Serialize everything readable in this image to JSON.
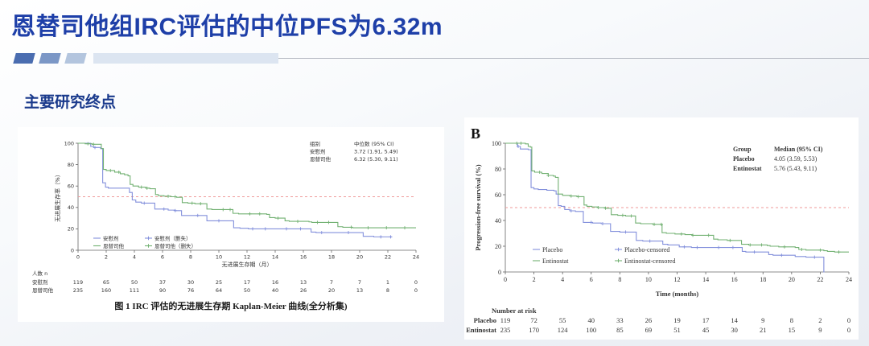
{
  "slide": {
    "title": "恩替司他组IRC评估的中位PFS为6.32m",
    "section_heading": "主要研究终点"
  },
  "colors": {
    "title_blue": "#1e3fa8",
    "heading_blue": "#1a3a8c",
    "placebo": "#8390dc",
    "entinostat": "#72b172",
    "median_line": "#ef9a9a",
    "axis": "#666666",
    "text": "#333333",
    "decor_squares": [
      "#4a6db0",
      "#7b97c6",
      "#b3c5de"
    ],
    "decor_bar": "#dce5f1"
  },
  "chart_data": [
    {
      "type": "line",
      "subtype": "kaplan-meier-step",
      "panel_label": "",
      "caption": "图 1 IRC 评估的无进展生存期 Kaplan-Meier 曲线(全分析集)",
      "xlabel": "无进展生存期（月）",
      "ylabel": "无进展生存率（%）",
      "xlim": [
        0,
        24
      ],
      "ylim": [
        0,
        100
      ],
      "xticks": [
        0,
        2,
        4,
        6,
        8,
        10,
        12,
        14,
        16,
        18,
        20,
        22,
        24
      ],
      "yticks": [
        0,
        20,
        40,
        60,
        80,
        100
      ],
      "median_ref_y": 50,
      "grid": false,
      "stats": {
        "headers": [
          "组别",
          "中位数 (95% CI)"
        ],
        "rows": [
          [
            "安慰剂",
            "3.72 (1.91, 5.49)"
          ],
          [
            "恩替司他",
            "6.32 (5.30, 9.11)"
          ]
        ]
      },
      "legend": [
        {
          "label": "安慰剂",
          "color_key": "placebo",
          "censored": false
        },
        {
          "label": "恩替司他",
          "color_key": "entinostat",
          "censored": false
        },
        {
          "label": "安慰剂（删失）",
          "color_key": "placebo",
          "censored": true
        },
        {
          "label": "恩替司他（删失）",
          "color_key": "entinostat",
          "censored": true
        }
      ],
      "series": [
        {
          "name": "安慰剂",
          "color_key": "placebo",
          "end_x": 22.3,
          "steps": [
            [
              0,
              100
            ],
            [
              0.9,
              97
            ],
            [
              1.1,
              96
            ],
            [
              1.6,
              95
            ],
            [
              1.75,
              63
            ],
            [
              1.95,
              59
            ],
            [
              2.15,
              58
            ],
            [
              3.65,
              54
            ],
            [
              3.85,
              47
            ],
            [
              4.1,
              45
            ],
            [
              4.5,
              44
            ],
            [
              5.45,
              38.5
            ],
            [
              6.4,
              37.5
            ],
            [
              6.9,
              37
            ],
            [
              7.35,
              32.5
            ],
            [
              9.15,
              27.5
            ],
            [
              11.05,
              21
            ],
            [
              11.5,
              20.5
            ],
            [
              12.1,
              20
            ],
            [
              16.55,
              17
            ],
            [
              16.9,
              16.5
            ],
            [
              20.25,
              13
            ],
            [
              21.0,
              12.5
            ]
          ],
          "censor_x": [
            1.2,
            4.7,
            6.1,
            6.9,
            8.5,
            10.0,
            12.4,
            13.3,
            14.8,
            15.8,
            17.3,
            19.2,
            21.5,
            22.2
          ]
        },
        {
          "name": "恩替司他",
          "color_key": "entinostat",
          "end_x": 24,
          "steps": [
            [
              0,
              100
            ],
            [
              0.5,
              99.5
            ],
            [
              1.0,
              99
            ],
            [
              1.65,
              95
            ],
            [
              1.8,
              75.5
            ],
            [
              2.0,
              74.5
            ],
            [
              2.6,
              73
            ],
            [
              3.0,
              71.5
            ],
            [
              3.3,
              70.5
            ],
            [
              3.55,
              69.5
            ],
            [
              3.7,
              61.5
            ],
            [
              3.9,
              60
            ],
            [
              4.3,
              59
            ],
            [
              4.8,
              58
            ],
            [
              5.1,
              57.5
            ],
            [
              5.5,
              52
            ],
            [
              5.7,
              51
            ],
            [
              6.1,
              50.5
            ],
            [
              6.6,
              50
            ],
            [
              7.0,
              49.5
            ],
            [
              7.4,
              44.5
            ],
            [
              7.8,
              44
            ],
            [
              8.3,
              43.5
            ],
            [
              9.15,
              38.5
            ],
            [
              9.5,
              38
            ],
            [
              11.0,
              34.5
            ],
            [
              11.4,
              34
            ],
            [
              13.4,
              33.5
            ],
            [
              13.6,
              30.5
            ],
            [
              14.0,
              30
            ],
            [
              14.7,
              27.5
            ],
            [
              15.0,
              27
            ],
            [
              16.4,
              26.5
            ],
            [
              16.6,
              26
            ],
            [
              18.45,
              22
            ],
            [
              18.8,
              21.5
            ],
            [
              19.5,
              21
            ]
          ],
          "censor_x": [
            0.7,
            1.1,
            2.3,
            2.9,
            4.5,
            4.9,
            6.4,
            6.9,
            8.1,
            8.7,
            10.3,
            10.8,
            12.2,
            12.9,
            14.2,
            15.6,
            17.0,
            17.8,
            19.4,
            20.6,
            21.9,
            23.2
          ]
        }
      ],
      "risk_table": {
        "title": "人数 n",
        "rows": [
          {
            "label": "安慰剂",
            "values": [
              119,
              65,
              50,
              37,
              30,
              25,
              17,
              16,
              13,
              7,
              7,
              1,
              0
            ]
          },
          {
            "label": "恩替司他",
            "values": [
              235,
              160,
              111,
              90,
              76,
              64,
              50,
              40,
              26,
              20,
              13,
              8,
              0
            ]
          }
        ]
      }
    },
    {
      "type": "line",
      "subtype": "kaplan-meier-step",
      "panel_label": "B",
      "caption": "",
      "xlabel": "Time (months)",
      "ylabel": "Progression-free survival (%)",
      "xlim": [
        0,
        24
      ],
      "ylim": [
        0,
        100
      ],
      "xticks": [
        0,
        2,
        4,
        6,
        8,
        10,
        12,
        14,
        16,
        18,
        20,
        22,
        24
      ],
      "yticks": [
        0,
        20,
        40,
        60,
        80,
        100
      ],
      "median_ref_y": 50,
      "grid": false,
      "stats": {
        "headers": [
          "Group",
          "Median (95% CI)"
        ],
        "rows": [
          [
            "Placebo",
            "4.05 (3.59, 5.53)"
          ],
          [
            "Entinostat",
            "5.76 (5.43, 9.11)"
          ]
        ]
      },
      "legend": [
        {
          "label": "Placebo",
          "color_key": "placebo",
          "censored": false
        },
        {
          "label": "Entinostat",
          "color_key": "entinostat",
          "censored": false
        },
        {
          "label": "Placebo-censored",
          "color_key": "placebo",
          "censored": true
        },
        {
          "label": "Entinostat-censored",
          "color_key": "entinostat",
          "censored": true
        }
      ],
      "series": [
        {
          "name": "Placebo",
          "color_key": "placebo",
          "end_x": 22.3,
          "steps": [
            [
              0,
              100
            ],
            [
              0.85,
              97.5
            ],
            [
              1.05,
              95.5
            ],
            [
              1.6,
              95
            ],
            [
              1.8,
              65.5
            ],
            [
              2.0,
              64.5
            ],
            [
              2.3,
              64
            ],
            [
              2.9,
              63.5
            ],
            [
              3.4,
              63
            ],
            [
              3.55,
              60.5
            ],
            [
              3.7,
              51.5
            ],
            [
              3.9,
              51
            ],
            [
              4.15,
              48.5
            ],
            [
              4.5,
              47.5
            ],
            [
              4.9,
              47
            ],
            [
              5.45,
              38.5
            ],
            [
              6.1,
              38
            ],
            [
              6.7,
              37.5
            ],
            [
              7.35,
              31.5
            ],
            [
              8.0,
              31
            ],
            [
              9.15,
              24.5
            ],
            [
              9.6,
              24
            ],
            [
              11.0,
              21.5
            ],
            [
              11.35,
              21
            ],
            [
              12.15,
              19.5
            ],
            [
              13.0,
              19
            ],
            [
              16.55,
              16
            ],
            [
              16.8,
              15.5
            ],
            [
              18.4,
              13.5
            ],
            [
              18.7,
              13
            ],
            [
              20.25,
              12
            ],
            [
              21.0,
              11.5
            ],
            [
              22.25,
              0
            ]
          ],
          "censor_x": [
            0.9,
            4.6,
            6.0,
            6.8,
            8.4,
            10.1,
            12.5,
            13.4,
            14.9,
            15.9,
            17.4,
            19.3,
            21.6
          ]
        },
        {
          "name": "Entinostat",
          "color_key": "entinostat",
          "end_x": 24,
          "steps": [
            [
              0,
              100
            ],
            [
              1.4,
              99.5
            ],
            [
              1.6,
              97.5
            ],
            [
              1.75,
              97
            ],
            [
              1.85,
              78.5
            ],
            [
              2.05,
              77.5
            ],
            [
              2.55,
              76.5
            ],
            [
              3.0,
              75
            ],
            [
              3.35,
              74.5
            ],
            [
              3.5,
              73.5
            ],
            [
              3.7,
              60.5
            ],
            [
              4.0,
              59.5
            ],
            [
              4.5,
              59
            ],
            [
              5.0,
              58.5
            ],
            [
              5.5,
              52
            ],
            [
              5.7,
              51
            ],
            [
              6.05,
              50.5
            ],
            [
              6.45,
              50
            ],
            [
              7.0,
              49.5
            ],
            [
              7.4,
              44.5
            ],
            [
              7.85,
              44
            ],
            [
              8.4,
              43.5
            ],
            [
              9.1,
              38
            ],
            [
              9.45,
              37.5
            ],
            [
              10.3,
              37
            ],
            [
              10.95,
              30.5
            ],
            [
              11.25,
              30
            ],
            [
              11.85,
              29.5
            ],
            [
              12.55,
              29
            ],
            [
              13.05,
              28.5
            ],
            [
              14.55,
              25.5
            ],
            [
              14.85,
              25
            ],
            [
              15.5,
              24.5
            ],
            [
              16.5,
              21.5
            ],
            [
              17.0,
              21
            ],
            [
              18.3,
              20.5
            ],
            [
              18.5,
              20
            ],
            [
              19.1,
              19.5
            ],
            [
              20.25,
              19
            ],
            [
              20.5,
              17.5
            ],
            [
              21.0,
              17
            ],
            [
              22.25,
              16.5
            ],
            [
              22.5,
              16
            ],
            [
              23.0,
              15.5
            ]
          ],
          "censor_x": [
            0.8,
            1.1,
            2.4,
            3.0,
            4.6,
            5.1,
            6.5,
            7.0,
            8.2,
            8.8,
            10.4,
            10.9,
            12.3,
            13.1,
            14.2,
            15.7,
            17.1,
            17.9,
            19.5,
            20.7,
            22.0,
            23.3
          ]
        }
      ],
      "risk_table": {
        "title": "Number at risk",
        "rows": [
          {
            "label": "Placebo",
            "values": [
              119,
              72,
              55,
              40,
              33,
              26,
              19,
              17,
              14,
              9,
              8,
              2,
              0
            ]
          },
          {
            "label": "Entinostat",
            "values": [
              235,
              170,
              124,
              100,
              85,
              69,
              51,
              45,
              30,
              21,
              15,
              9,
              0
            ]
          }
        ]
      }
    }
  ]
}
